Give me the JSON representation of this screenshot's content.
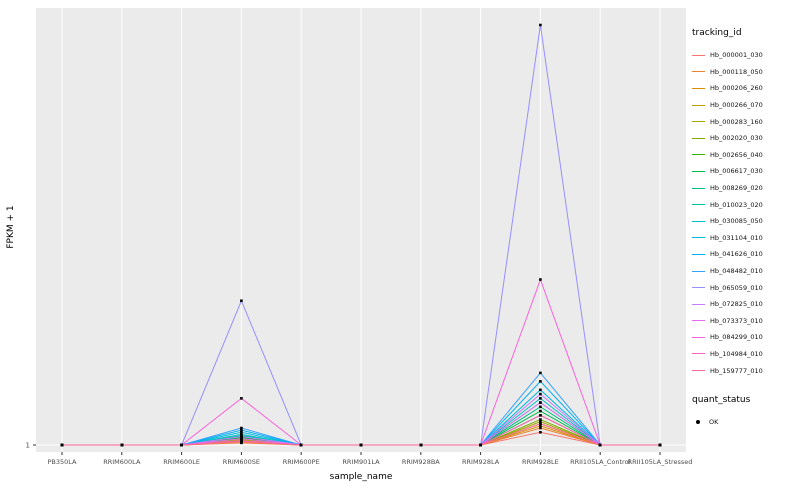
{
  "figure": {
    "ylabel": "FPKM + 1",
    "xlabel": "sample_name",
    "ytick_label": "1",
    "panel_bg": "#EBEBEB",
    "grid_color": "#FFFFFF",
    "axis_text_color": "#4D4D4D",
    "point_color": "#000000",
    "legend_title": "tracking_id",
    "quant_legend": {
      "title": "quant_status",
      "items": [
        {
          "label": "OK"
        }
      ]
    }
  },
  "chart_data": {
    "type": "line",
    "title": "",
    "xlabel": "sample_name",
    "ylabel": "FPKM + 1",
    "ylim": [
      1,
      100
    ],
    "yticks": [
      1
    ],
    "legend_position": "right",
    "grid": true,
    "point_marker": "black dot (quant_status = OK) at every data point",
    "categories": [
      "PB350LA",
      "RRIM600LA",
      "RRIM600LE",
      "RRIM600SE",
      "RRIM600PE",
      "RRIM901LA",
      "RRIM928BA",
      "RRIM928LA",
      "RRIM928LE",
      "RRII105LA_Control",
      "RRII105LA_Stressed"
    ],
    "series": [
      {
        "name": "Hb_000001_030",
        "color": "#F8766D",
        "values": [
          1,
          1,
          1,
          1.5,
          1,
          1,
          1,
          1,
          4,
          1,
          1
        ]
      },
      {
        "name": "Hb_000118_050",
        "color": "#EA8331",
        "values": [
          1,
          1,
          1,
          1.6,
          1,
          1,
          1,
          1,
          5,
          1,
          1
        ]
      },
      {
        "name": "Hb_000206_260",
        "color": "#D89000",
        "values": [
          1,
          1,
          1,
          1.8,
          1,
          1,
          1,
          1,
          5.5,
          1,
          1
        ]
      },
      {
        "name": "Hb_000266_070",
        "color": "#C09B00",
        "values": [
          1,
          1,
          1,
          2,
          1,
          1,
          1,
          1,
          6,
          1,
          1
        ]
      },
      {
        "name": "Hb_000283_160",
        "color": "#A3A500",
        "values": [
          1,
          1,
          1,
          2.2,
          1,
          1,
          1,
          1,
          6.5,
          1,
          1
        ]
      },
      {
        "name": "Hb_002020_030",
        "color": "#7CAE00",
        "values": [
          1,
          1,
          1,
          2.4,
          1,
          1,
          1,
          1,
          7,
          1,
          1
        ]
      },
      {
        "name": "Hb_002656_040",
        "color": "#39B600",
        "values": [
          1,
          1,
          1,
          2.6,
          1,
          1,
          1,
          1,
          8,
          1,
          1
        ]
      },
      {
        "name": "Hb_006617_030",
        "color": "#00BB4E",
        "values": [
          1,
          1,
          1,
          2.8,
          1,
          1,
          1,
          1,
          9,
          1,
          1
        ]
      },
      {
        "name": "Hb_008269_020",
        "color": "#00BF7D",
        "values": [
          1,
          1,
          1,
          3,
          1,
          1,
          1,
          1,
          10,
          1,
          1
        ]
      },
      {
        "name": "Hb_010023_020",
        "color": "#00C1A3",
        "values": [
          1,
          1,
          1,
          3.2,
          1,
          1,
          1,
          1,
          11,
          1,
          1
        ]
      },
      {
        "name": "Hb_030085_050",
        "color": "#00BFC4",
        "values": [
          1,
          1,
          1,
          3.5,
          1,
          1,
          1,
          1,
          12,
          1,
          1
        ]
      },
      {
        "name": "Hb_031104_010",
        "color": "#00BAE0",
        "values": [
          1,
          1,
          1,
          4,
          1,
          1,
          1,
          1,
          14,
          1,
          1
        ]
      },
      {
        "name": "Hb_041626_010",
        "color": "#00B0F6",
        "values": [
          1,
          1,
          1,
          4.5,
          1,
          1,
          1,
          1,
          16,
          1,
          1
        ]
      },
      {
        "name": "Hb_048482_010",
        "color": "#35A2FF",
        "values": [
          1,
          1,
          1,
          5,
          1,
          1,
          1,
          1,
          18,
          1,
          1
        ]
      },
      {
        "name": "Hb_065059_010",
        "color": "#9590FF",
        "values": [
          1,
          1,
          1,
          35,
          1,
          1,
          1,
          1,
          100,
          1,
          1
        ]
      },
      {
        "name": "Hb_072825_010",
        "color": "#C77CFF",
        "values": [
          1,
          1,
          1,
          3,
          1,
          1,
          1,
          1,
          13,
          1,
          1
        ]
      },
      {
        "name": "Hb_073373_010",
        "color": "#E76BF3",
        "values": [
          1,
          1,
          1,
          2.5,
          1,
          1,
          1,
          1,
          11,
          1,
          1
        ]
      },
      {
        "name": "Hb_084299_010",
        "color": "#FA62DB",
        "values": [
          1,
          1,
          1,
          12,
          1,
          1,
          1,
          1,
          40,
          1,
          1
        ]
      },
      {
        "name": "Hb_104984_010",
        "color": "#FF62BC",
        "values": [
          1,
          1,
          1,
          2,
          1,
          1,
          1,
          1,
          8,
          1,
          1
        ]
      },
      {
        "name": "Hb_159777_010",
        "color": "#FF6A98",
        "values": [
          1,
          1,
          1,
          1.8,
          1,
          1,
          1,
          1,
          6,
          1,
          1
        ]
      }
    ]
  }
}
